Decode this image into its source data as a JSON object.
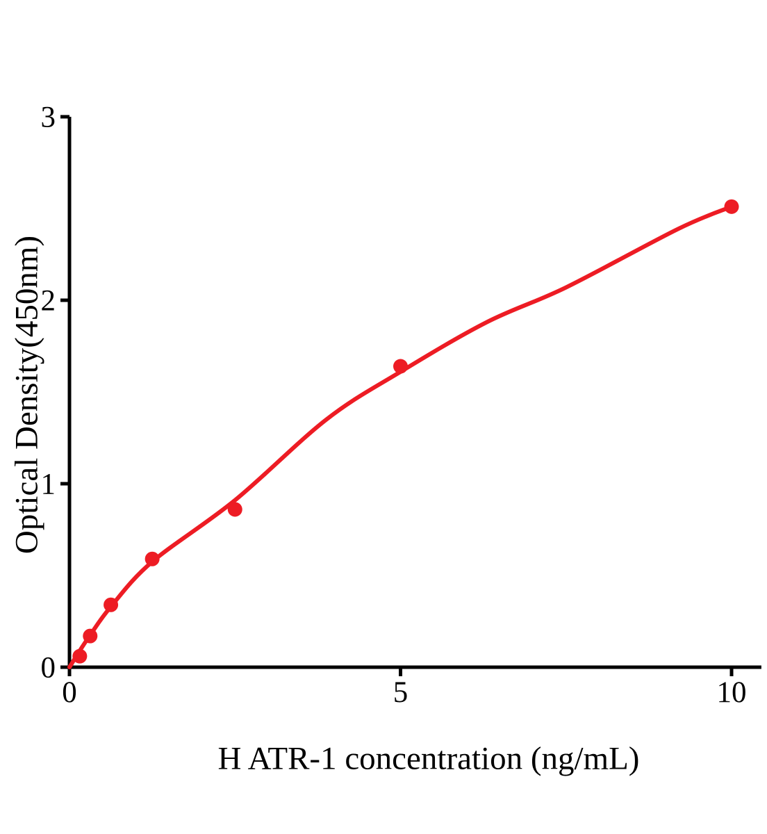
{
  "figure": {
    "background": "#ffffff"
  },
  "chart_data": {
    "type": "scatter",
    "title": "",
    "xlabel": "H ATR-1 concentration (ng/mL)",
    "ylabel": "Optical Density(450nm)",
    "xlim": [
      0,
      10.45
    ],
    "ylim": [
      0,
      3
    ],
    "x_ticks": [
      0,
      5,
      10
    ],
    "y_ticks": [
      0,
      1,
      2,
      3
    ],
    "grid": false,
    "legend": null,
    "axis_color": "#000000",
    "series_color": "#ED1C24",
    "points": [
      {
        "x": 0.156,
        "y": 0.06
      },
      {
        "x": 0.3125,
        "y": 0.17
      },
      {
        "x": 0.625,
        "y": 0.34
      },
      {
        "x": 1.25,
        "y": 0.59
      },
      {
        "x": 2.5,
        "y": 0.86
      },
      {
        "x": 5,
        "y": 1.64
      },
      {
        "x": 10,
        "y": 2.51
      }
    ],
    "fit_curve": [
      {
        "x": 0,
        "y": 0
      },
      {
        "x": 0.156,
        "y": 0.09
      },
      {
        "x": 0.3125,
        "y": 0.175
      },
      {
        "x": 0.625,
        "y": 0.33
      },
      {
        "x": 1.25,
        "y": 0.575
      },
      {
        "x": 2.5,
        "y": 0.91
      },
      {
        "x": 3.88,
        "y": 1.35
      },
      {
        "x": 5,
        "y": 1.61
      },
      {
        "x": 6.3,
        "y": 1.88
      },
      {
        "x": 7.5,
        "y": 2.07
      },
      {
        "x": 9.2,
        "y": 2.39
      },
      {
        "x": 10,
        "y": 2.51
      }
    ]
  }
}
